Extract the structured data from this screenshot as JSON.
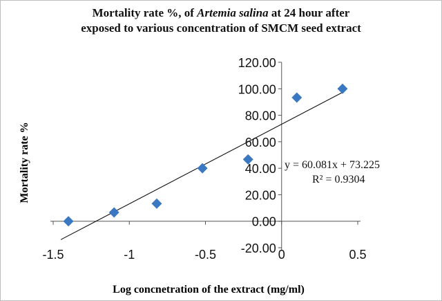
{
  "chart_data": {
    "type": "scatter",
    "title": {
      "line1": "Mortality rate %, of ",
      "species": "Artemia salina",
      "line1_rest": " at 24 hour after",
      "line2": "exposed to various concentration of SMCM seed extract"
    },
    "xlabel": "Log concnetration of the extract (mg/ml)",
    "ylabel": "Mortality rate %",
    "xlim": [
      -1.5,
      0.5
    ],
    "ylim": [
      -20,
      120
    ],
    "x_ticks": [
      -1.5,
      -1,
      -0.5,
      0,
      0.5
    ],
    "x_tick_labels": [
      "-1.5",
      "-1",
      "-0.5",
      "0",
      "0.5"
    ],
    "y_ticks": [
      -20,
      0,
      20,
      40,
      60,
      80,
      100,
      120
    ],
    "y_tick_labels": [
      "-20.00",
      "0.00",
      "20.00",
      "40.00",
      "60.00",
      "80.00",
      "100.00",
      "120.00"
    ],
    "grid": false,
    "marker": "diamond",
    "marker_color": "#3b78c2",
    "points": [
      {
        "x": -1.4,
        "y": 0
      },
      {
        "x": -1.1,
        "y": 6.67
      },
      {
        "x": -0.82,
        "y": 13.33
      },
      {
        "x": -0.52,
        "y": 40
      },
      {
        "x": -0.22,
        "y": 46.67
      },
      {
        "x": 0.1,
        "y": 93.33
      },
      {
        "x": 0.4,
        "y": 100
      }
    ],
    "trendline": {
      "slope": 60.081,
      "intercept": 73.225,
      "x_range": [
        -1.4,
        0.4
      ],
      "equation": "y = 60.081x + 73.225",
      "r_squared": "R² = 0.9304"
    }
  }
}
